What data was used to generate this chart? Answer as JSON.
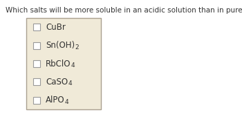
{
  "title": "Which salts will be more soluble in an acidic solution than in pure water?",
  "title_fontsize": 7.5,
  "title_color": "#333333",
  "bg_color": "#ffffff",
  "box_bg_color": "#f0ead8",
  "box_border_color": "#aaa090",
  "checkbox_color": "#ffffff",
  "checkbox_border_color": "#999999",
  "items": [
    {
      "parts": [
        {
          "text": "CuBr",
          "sub": false
        }
      ]
    },
    {
      "parts": [
        {
          "text": "Sn(OH)",
          "sub": false
        },
        {
          "text": "2",
          "sub": true
        }
      ]
    },
    {
      "parts": [
        {
          "text": "RbClO",
          "sub": false
        },
        {
          "text": "4",
          "sub": true
        }
      ]
    },
    {
      "parts": [
        {
          "text": "CaSO",
          "sub": false
        },
        {
          "text": "4",
          "sub": true
        }
      ]
    },
    {
      "parts": [
        {
          "text": "AlPO",
          "sub": false
        },
        {
          "text": "4",
          "sub": true
        }
      ]
    }
  ],
  "text_color": "#333333",
  "text_fontsize": 8.5,
  "sub_fontsize": 6.5
}
